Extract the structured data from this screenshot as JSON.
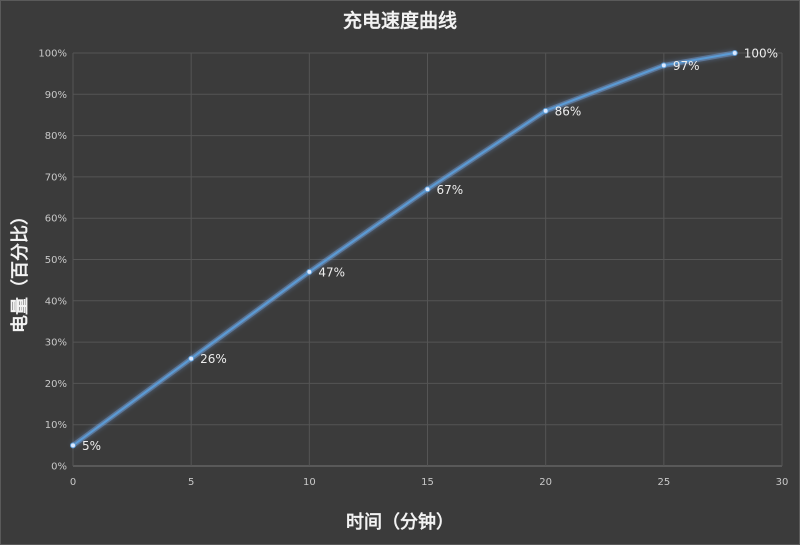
{
  "chart_data": {
    "type": "line",
    "title": "充电速度曲线",
    "xlabel": "时间（分钟）",
    "ylabel": "电量（百分比）",
    "x": [
      0,
      5,
      10,
      15,
      20,
      25,
      28
    ],
    "series": [
      {
        "values": [
          5,
          26,
          47,
          67,
          86,
          97,
          100
        ]
      }
    ],
    "data_labels": [
      "5%",
      "26%",
      "47%",
      "67%",
      "86%",
      "97%",
      "100%"
    ],
    "xlim": [
      0,
      30
    ],
    "ylim": [
      0,
      100
    ],
    "x_ticks": [
      0,
      5,
      10,
      15,
      20,
      25,
      30
    ],
    "x_tick_labels": [
      "0",
      "5",
      "10",
      "15",
      "20",
      "25",
      "30"
    ],
    "y_ticks": [
      0,
      10,
      20,
      30,
      40,
      50,
      60,
      70,
      80,
      90,
      100
    ],
    "y_tick_labels": [
      "0%",
      "10%",
      "20%",
      "30%",
      "40%",
      "50%",
      "60%",
      "70%",
      "80%",
      "90%",
      "100%"
    ],
    "grid": true,
    "legend": "none",
    "colors": {
      "line": "#5b9bd5",
      "glow": "#7fb8ff",
      "grid": "#555555",
      "background": "#3b3b3b"
    }
  }
}
